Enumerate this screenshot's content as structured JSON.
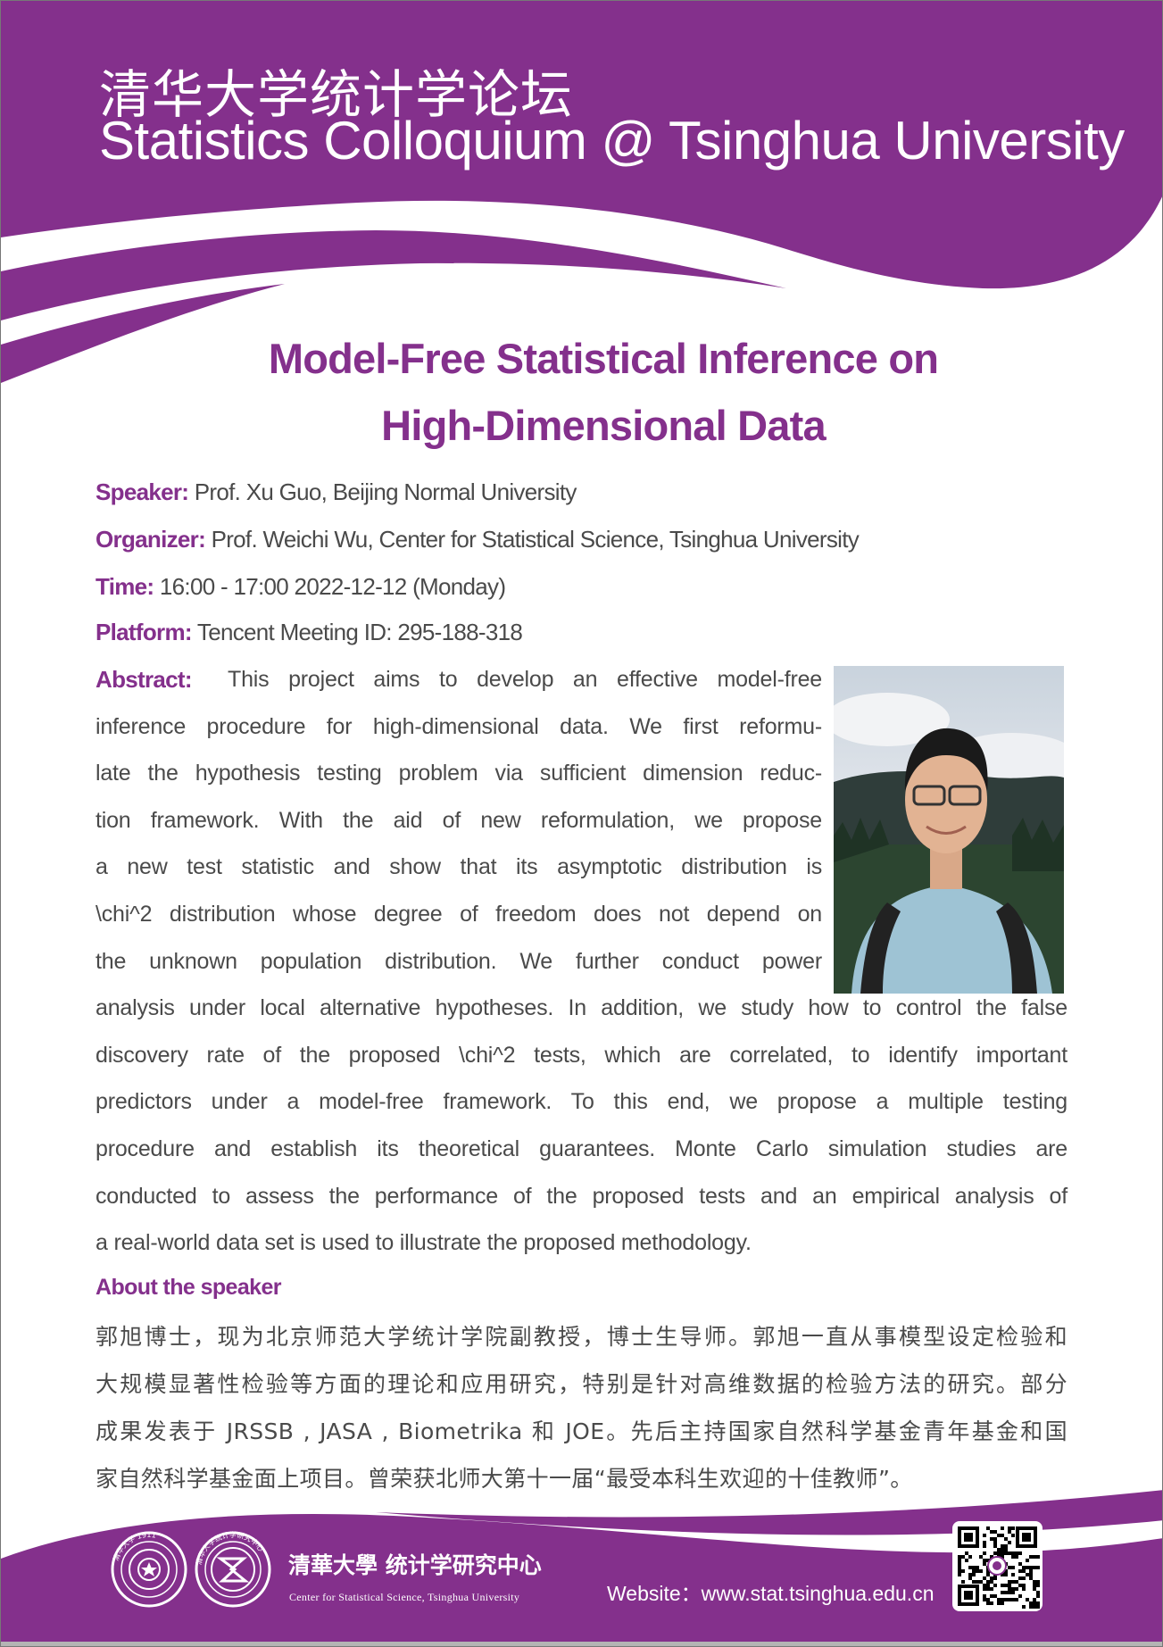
{
  "header": {
    "title_cn": "清华大学统计学论坛",
    "title_en": "Statistics Colloquium @ Tsinghua University"
  },
  "talk": {
    "title_line1": "Model-Free Statistical Inference on",
    "title_line2": "High-Dimensional Data"
  },
  "info": {
    "speaker_label": "Speaker:",
    "speaker": "Prof. Xu Guo, Beijing Normal University",
    "organizer_label": "Organizer:",
    "organizer": "Prof. Weichi Wu, Center for Statistical Science, Tsinghua University",
    "time_label": "Time:",
    "time": "16:00 - 17:00 2022-12-12 (Monday)",
    "platform_label": "Platform:",
    "platform": "Tencent Meeting ID: 295-188-318"
  },
  "abstract": {
    "label": "Abstract:",
    "lines": [
      "This project aims to develop an effective model-free",
      "inference procedure for high-dimensional data. We first reformu-",
      "late the hypothesis testing problem via sufficient dimension reduc-",
      "tion framework. With the aid of new reformulation, we propose",
      "a new test statistic and show that its asymptotic distribution is",
      "\\chi^2 distribution whose degree of freedom does not depend on",
      "the unknown population distribution. We further conduct power",
      "analysis under local alternative hypotheses. In addition, we study how to control the false",
      "discovery rate of the proposed \\chi^2 tests, which are correlated, to identify important",
      "predictors under a model-free framework. To this end, we propose a multiple testing",
      "procedure and establish its theoretical guarantees. Monte Carlo simulation studies are",
      "conducted to assess the performance of the proposed tests and an empirical analysis of",
      "a real-world data set is used to illustrate the proposed methodology."
    ]
  },
  "about": {
    "heading": "About the speaker",
    "lines": [
      "郭旭博士，现为北京师范大学统计学院副教授，博士生导师。郭旭一直从事模型设定检验和",
      "大规模显著性检验等方面的理论和应用研究，特别是针对高维数据的检验方法的研究。部分",
      "成果发表于 JRSSB , JASA , Biometrika 和 JOE。先后主持国家自然科学基金青年基金和国",
      "家自然科学基金面上项目。曾荣获北师大第十一届“最受本科生欢迎的十佳教师”。"
    ]
  },
  "footer": {
    "center_name_cn": "清華大學 统计学研究中心",
    "center_name_en": "Center for Statistical Science, Tsinghua University",
    "website": "Website：www.stat.tsinghua.edu.cn",
    "seal1_text": "清华大学 1911",
    "seal2_text": "清华大学统计学研究中心"
  },
  "colors": {
    "brand_purple": "#84308c",
    "text_gray": "#4a4a4a"
  }
}
